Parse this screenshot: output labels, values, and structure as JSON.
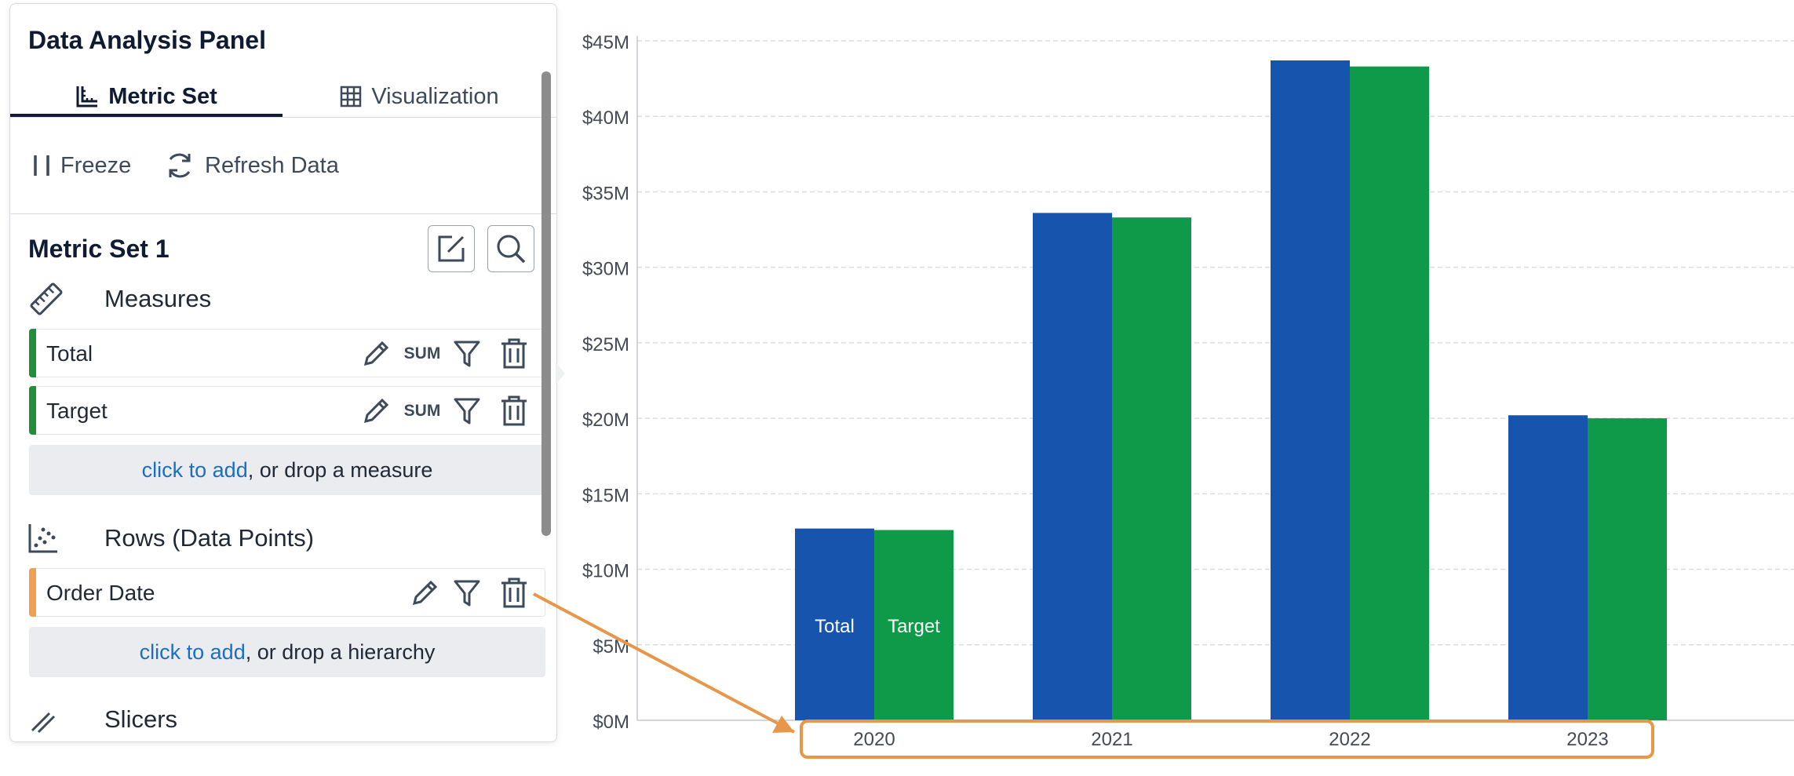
{
  "panel": {
    "title": "Data Analysis Panel",
    "tabs": [
      {
        "label": "Metric Set",
        "icon": "ruler-chart-icon",
        "active": true
      },
      {
        "label": "Visualization",
        "icon": "grid-icon",
        "active": false
      }
    ],
    "toolbar": {
      "freeze_label": "Freeze",
      "refresh_label": "Refresh Data"
    },
    "metric_set": {
      "title": "Metric Set 1",
      "measures": {
        "heading": "Measures",
        "items": [
          {
            "label": "Total",
            "aggregation": "SUM",
            "color": "#1f8f3a"
          },
          {
            "label": "Target",
            "aggregation": "SUM",
            "color": "#1f8f3a"
          }
        ],
        "drop_link": "click to add",
        "drop_text": ", or drop a measure"
      },
      "rows": {
        "heading": "Rows (Data Points)",
        "items": [
          {
            "label": "Order Date",
            "color": "#f0a050"
          }
        ],
        "drop_link": "click to add",
        "drop_text": ", or drop a hierarchy"
      },
      "slicers": {
        "heading": "Slicers"
      }
    }
  },
  "colors": {
    "total": "#1654ad",
    "target": "#0e9a48",
    "highlight": "#e8964a",
    "link": "#1a6fc2"
  },
  "chart_data": {
    "type": "bar",
    "categories": [
      "2020",
      "2021",
      "2022",
      "2023"
    ],
    "series": [
      {
        "name": "Total",
        "values": [
          12.7,
          33.6,
          43.7,
          20.2
        ],
        "color": "#1654ad"
      },
      {
        "name": "Target",
        "values": [
          12.6,
          33.3,
          43.3,
          20.0
        ],
        "color": "#0e9a48"
      }
    ],
    "yticks": [
      "$0M",
      "$5M",
      "$10M",
      "$15M",
      "$20M",
      "$25M",
      "$30M",
      "$35M",
      "$40M",
      "$45M"
    ],
    "ylim": [
      0,
      45
    ],
    "grid": true,
    "bar_labels_category": "2020"
  }
}
